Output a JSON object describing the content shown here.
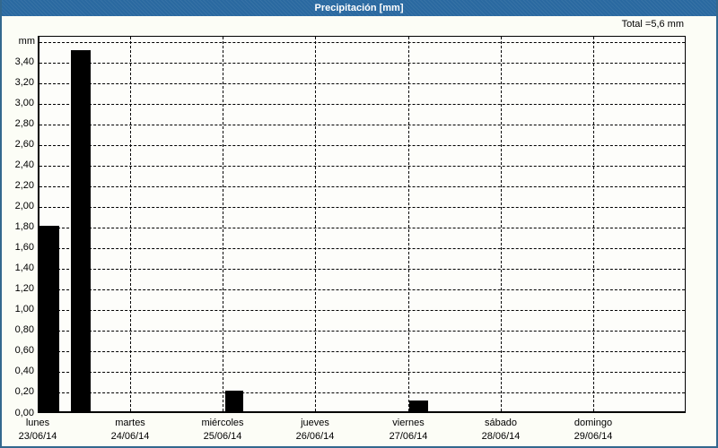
{
  "window": {
    "title": "Precipitación [mm]"
  },
  "chart_data": {
    "type": "bar",
    "title": "Precipitación [mm]",
    "total_label": "Total =5,6 mm",
    "y_axis": {
      "unit": "mm",
      "min": 0,
      "max": 3.66,
      "tick_step": 0.2,
      "tick_labels": [
        "0,00",
        "0,20",
        "0,40",
        "0,60",
        "0,80",
        "1,00",
        "1,20",
        "1,40",
        "1,60",
        "1,80",
        "2,00",
        "2,20",
        "2,40",
        "2,60",
        "2,80",
        "3,00",
        "3,20",
        "3,40"
      ],
      "top_unlabeled_gridline": 3.6,
      "grid": "dashed"
    },
    "x_axis": {
      "days": [
        {
          "name": "lunes",
          "date": "23/06/14"
        },
        {
          "name": "martes",
          "date": "24/06/14"
        },
        {
          "name": "miércoles",
          "date": "25/06/14"
        },
        {
          "name": "jueves",
          "date": "26/06/14"
        },
        {
          "name": "viernes",
          "date": "27/06/14"
        },
        {
          "name": "sábado",
          "date": "28/06/14"
        },
        {
          "name": "domingo",
          "date": "29/06/14"
        }
      ]
    },
    "bars": [
      {
        "value_mm": 1.8,
        "left_frac": 0.0028,
        "width_frac": 0.0305
      },
      {
        "value_mm": 3.5,
        "left_frac": 0.0512,
        "width_frac": 0.0305
      },
      {
        "value_mm": 0.2,
        "left_frac": 0.2895,
        "width_frac": 0.0277
      },
      {
        "value_mm": 0.1,
        "left_frac": 0.5734,
        "width_frac": 0.0291
      }
    ],
    "bar_color": "#000000",
    "values_mm": [
      1.8,
      3.5,
      0.2,
      0.1
    ]
  },
  "colors": {
    "titlebar": "#2a69a0",
    "border": "#33688e",
    "background": "#fcfdf6",
    "plot_background": "#fdfdfa",
    "grid": "#000000",
    "text": "#000000",
    "title_text": "#ffffff"
  }
}
